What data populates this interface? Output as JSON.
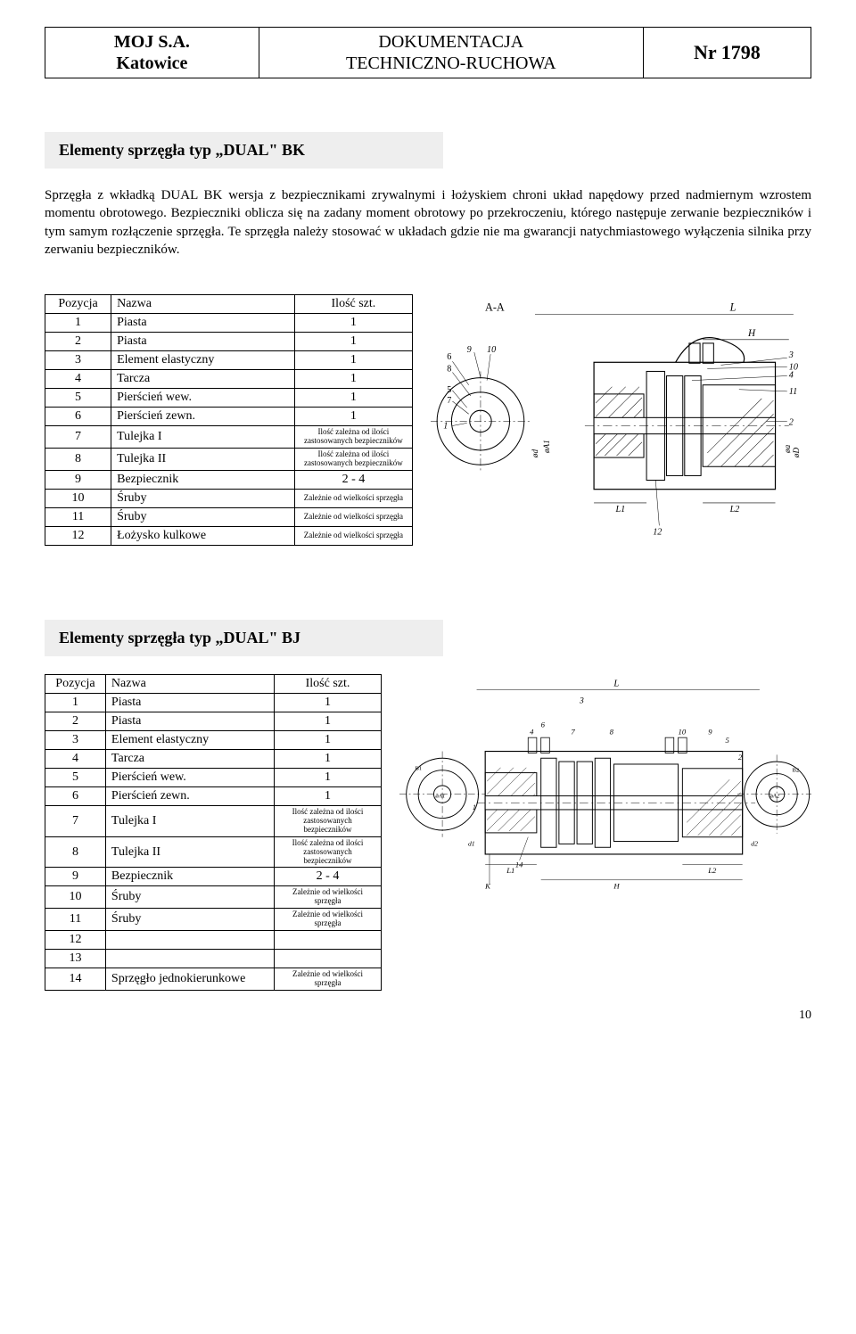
{
  "header": {
    "company_line1": "MOJ S.A.",
    "company_line2": "Katowice",
    "doc_line1": "DOKUMENTACJA",
    "doc_line2": "TECHNICZNO-RUCHOWA",
    "doc_number": "Nr 1798"
  },
  "page_number": "10",
  "section1": {
    "title": "Elementy sprzęgła typ „DUAL\" BK",
    "paragraph": "Sprzęgła z wkładką DUAL BK wersja z bezpiecznikami zrywalnymi i łożyskiem chroni układ napędowy przed nadmiernym wzrostem momentu obrotowego. Bezpieczniki oblicza się na zadany moment obrotowy po przekroczeniu, którego następuje zerwanie bezpieczników i tym samym rozłączenie sprzęgła. Te sprzęgła należy stosować w układach gdzie nie ma gwarancji natychmiastowego wyłączenia silnika przy zerwaniu bezpieczników.",
    "table": {
      "headers": [
        "Pozycja",
        "Nazwa",
        "Ilość szt."
      ],
      "rows": [
        {
          "pos": "1",
          "name": "Piasta",
          "qty": "1"
        },
        {
          "pos": "2",
          "name": "Piasta",
          "qty": "1"
        },
        {
          "pos": "3",
          "name": "Element elastyczny",
          "qty": "1"
        },
        {
          "pos": "4",
          "name": "Tarcza",
          "qty": "1"
        },
        {
          "pos": "5",
          "name": "Pierścień wew.",
          "qty": "1"
        },
        {
          "pos": "6",
          "name": "Pierścień zewn.",
          "qty": "1"
        },
        {
          "pos": "7",
          "name": "Tulejka I",
          "qty": "Ilość zależna od ilości zastosowanych bezpieczników"
        },
        {
          "pos": "8",
          "name": "Tulejka II",
          "qty": "Ilość zależna od ilości zastosowanych bezpieczników"
        },
        {
          "pos": "9",
          "name": "Bezpiecznik",
          "qty": "2 - 4"
        },
        {
          "pos": "10",
          "name": "Śruby",
          "qty": "Zależnie od wielkości sprzęgła"
        },
        {
          "pos": "11",
          "name": "Śruby",
          "qty": "Zależnie od wielkości sprzęgła"
        },
        {
          "pos": "12",
          "name": "Łożysko kulkowe",
          "qty": "Zależnie od wielkości sprzęgła"
        }
      ]
    },
    "figure": {
      "type": "engineering-drawing",
      "section_label": "A-A",
      "dim_labels": [
        "L",
        "H",
        "L1",
        "L2",
        "ød",
        "øA1",
        "øa",
        "øD"
      ],
      "callout_numbers": [
        "1",
        "2",
        "3",
        "4",
        "5",
        "6",
        "7",
        "8",
        "9",
        "10",
        "11",
        "12"
      ],
      "stroke": "#000000",
      "fill": "#ffffff",
      "hatch": "#000000"
    }
  },
  "section2": {
    "title": "Elementy sprzęgła typ „DUAL\" BJ",
    "table": {
      "headers": [
        "Pozycja",
        "Nazwa",
        "Ilość szt."
      ],
      "rows": [
        {
          "pos": "1",
          "name": "Piasta",
          "qty": "1"
        },
        {
          "pos": "2",
          "name": "Piasta",
          "qty": "1"
        },
        {
          "pos": "3",
          "name": "Element elastyczny",
          "qty": "1"
        },
        {
          "pos": "4",
          "name": "Tarcza",
          "qty": "1"
        },
        {
          "pos": "5",
          "name": "Pierścień wew.",
          "qty": "1"
        },
        {
          "pos": "6",
          "name": "Pierścień zewn.",
          "qty": "1"
        },
        {
          "pos": "7",
          "name": "Tulejka I",
          "qty": "Ilość zależna od ilości zastosowanych bezpieczników"
        },
        {
          "pos": "8",
          "name": "Tulejka II",
          "qty": "Ilość zależna od ilości zastosowanych bezpieczników"
        },
        {
          "pos": "9",
          "name": "Bezpiecznik",
          "qty": "2 - 4"
        },
        {
          "pos": "10",
          "name": "Śruby",
          "qty": "Zależnie od wielkości sprzęgła"
        },
        {
          "pos": "11",
          "name": "Śruby",
          "qty": "Zależnie od wielkości sprzęgła"
        },
        {
          "pos": "12",
          "name": "",
          "qty": ""
        },
        {
          "pos": "13",
          "name": "",
          "qty": ""
        },
        {
          "pos": "14",
          "name": "Sprzęgło jednokierunkowe",
          "qty": "Zależnie od wielkości sprzęgła"
        }
      ]
    },
    "figure": {
      "type": "engineering-drawing",
      "dim_labels": [
        "L",
        "H",
        "K",
        "L1",
        "L2",
        "øA1",
        "øA2",
        "d1",
        "d2",
        "B1",
        "B2"
      ],
      "callout_numbers": [
        "1",
        "2",
        "3",
        "4",
        "5",
        "6",
        "7",
        "8",
        "9",
        "10",
        "14"
      ],
      "stroke": "#000000",
      "fill": "#ffffff"
    }
  }
}
